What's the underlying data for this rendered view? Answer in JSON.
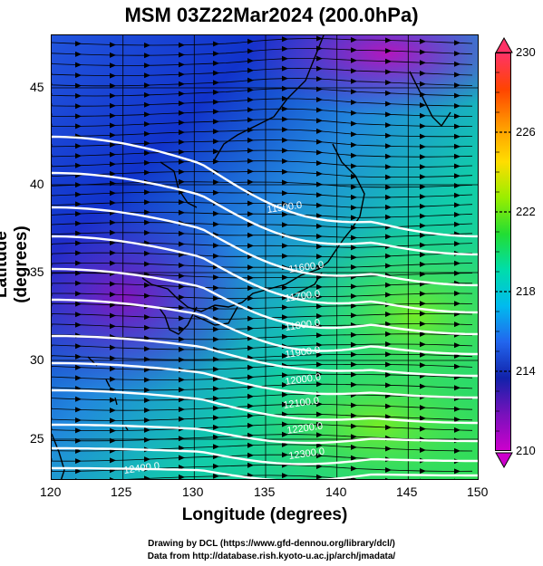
{
  "title": "MSM 03Z22Mar2024 (200.0hPa)",
  "axes": {
    "xlabel": "Longitude (degrees)",
    "ylabel": "Latitude  (degrees)",
    "xticks": [
      "120",
      "125",
      "130",
      "135",
      "140",
      "145",
      "150"
    ],
    "yticks": [
      "45",
      "40",
      "35",
      "30",
      "25"
    ]
  },
  "colorbar": {
    "labels": [
      "230",
      "226",
      "222",
      "218",
      "214",
      "210"
    ],
    "min": 210,
    "max": 230,
    "colors": [
      "#ff3366",
      "#ff4400",
      "#ff9900",
      "#ffdd00",
      "#99ee00",
      "#22dd33",
      "#00ddaa",
      "#00bbee",
      "#2266ee",
      "#1122aa",
      "#7711bb",
      "#cc00cc"
    ]
  },
  "contours": {
    "labels": [
      "11500.0",
      "11600.0",
      "11700.0",
      "11800.0",
      "11900.0",
      "12000.0",
      "12100.0",
      "12200.0",
      "12300.0",
      "12400.0"
    ]
  },
  "credits": {
    "line1": "Drawing by DCL (https://www.gfd-dennou.org/library/dcl/)",
    "line2": "Data from http://database.rish.kyoto-u.ac.jp/arch/jmadata/"
  }
}
